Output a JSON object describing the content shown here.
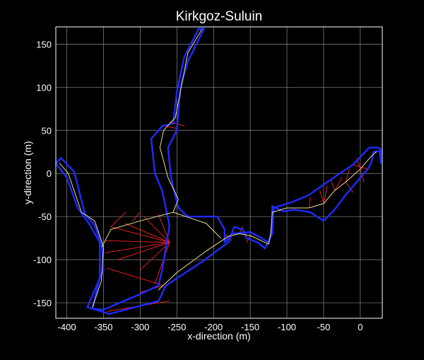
{
  "chart_data": {
    "type": "line",
    "title": "Kirkgoz-Suluin",
    "xlabel": "x-direction (m)",
    "ylabel": "y-direction (m)",
    "xlim": [
      -415,
      30
    ],
    "ylim": [
      -168,
      170
    ],
    "x_ticks": [
      -400,
      -350,
      -300,
      -250,
      -200,
      -150,
      -100,
      -50,
      0
    ],
    "y_ticks": [
      -150,
      -100,
      -50,
      0,
      50,
      100,
      150
    ],
    "grid": true,
    "colors": {
      "background": "#000000",
      "grid": "#8a8a8a",
      "axes": "#ffffff",
      "walls": "#1f2bff",
      "centerline": "#e6e090",
      "splays": "#ff2020"
    },
    "series": [
      {
        "role": "walls",
        "segments": [
          [
            [
              -415,
              12
            ],
            [
              -408,
              18
            ],
            [
              -390,
              2
            ],
            [
              -375,
              -48
            ],
            [
              -362,
              -60
            ],
            [
              -352,
              -85
            ],
            [
              -350,
              -112
            ],
            [
              -372,
              -155
            ],
            [
              -342,
              -163
            ],
            [
              -275,
              -148
            ],
            [
              -265,
              -130
            ],
            [
              -215,
              -102
            ],
            [
              -180,
              -80
            ],
            [
              -172,
              -62
            ],
            [
              -160,
              -65
            ],
            [
              -155,
              -75
            ],
            [
              -140,
              -80
            ],
            [
              -130,
              -87
            ],
            [
              -120,
              -70
            ],
            [
              -118,
              -40
            ],
            [
              -92,
              -33
            ],
            [
              -70,
              -25
            ],
            [
              -50,
              -13
            ],
            [
              -28,
              0
            ],
            [
              -10,
              10
            ],
            [
              12,
              30
            ],
            [
              25,
              30
            ],
            [
              28,
              28
            ],
            [
              28,
              12
            ]
          ],
          [
            [
              -415,
              12
            ],
            [
              -400,
              -5
            ],
            [
              -385,
              -40
            ],
            [
              -370,
              -58
            ],
            [
              -355,
              -80
            ],
            [
              -355,
              -100
            ],
            [
              -355,
              -120
            ],
            [
              -365,
              -157
            ],
            [
              -350,
              -158
            ],
            [
              -300,
              -140
            ],
            [
              -275,
              -130
            ],
            [
              -270,
              -112
            ],
            [
              -260,
              -60
            ],
            [
              -270,
              -20
            ],
            [
              -280,
              0
            ],
            [
              -285,
              40
            ],
            [
              -270,
              55
            ],
            [
              -255,
              58
            ],
            [
              -250,
              95
            ],
            [
              -240,
              135
            ],
            [
              -220,
              168
            ],
            [
              -213,
              168
            ],
            [
              -235,
              130
            ],
            [
              -245,
              100
            ],
            [
              -250,
              50
            ],
            [
              -262,
              30
            ],
            [
              -258,
              -5
            ],
            [
              -248,
              -40
            ],
            [
              -235,
              -50
            ],
            [
              -195,
              -50
            ],
            [
              -185,
              -65
            ],
            [
              -185,
              -80
            ],
            [
              -175,
              -70
            ],
            [
              -150,
              -68
            ],
            [
              -135,
              -75
            ],
            [
              -125,
              -80
            ],
            [
              -122,
              -70
            ],
            [
              -120,
              -55
            ],
            [
              -120,
              -38
            ],
            [
              -105,
              -44
            ],
            [
              -90,
              -42
            ],
            [
              -68,
              -45
            ],
            [
              -50,
              -55
            ],
            [
              -35,
              -42
            ],
            [
              -20,
              -25
            ],
            [
              -10,
              -15
            ],
            [
              10,
              5
            ],
            [
              15,
              12
            ],
            [
              18,
              25
            ],
            [
              26,
              26
            ],
            [
              28,
              15
            ]
          ]
        ]
      },
      {
        "role": "centerline",
        "segments": [
          [
            [
              -410,
              12
            ],
            [
              -398,
              0
            ],
            [
              -380,
              -45
            ],
            [
              -362,
              -55
            ],
            [
              -350,
              -85
            ],
            [
              -353,
              -125
            ],
            [
              -365,
              -155
            ]
          ],
          [
            [
              -352,
              -85
            ],
            [
              -340,
              -65
            ],
            [
              -300,
              -55
            ],
            [
              -255,
              -45
            ],
            [
              -248,
              -30
            ],
            [
              -262,
              -5
            ],
            [
              -273,
              30
            ],
            [
              -268,
              50
            ],
            [
              -252,
              65
            ],
            [
              -243,
              105
            ],
            [
              -235,
              140
            ],
            [
              -216,
              167
            ]
          ],
          [
            [
              -255,
              -45
            ],
            [
              -210,
              -58
            ],
            [
              -190,
              -75
            ]
          ],
          [
            [
              -275,
              -135
            ],
            [
              -250,
              -115
            ],
            [
              -210,
              -90
            ],
            [
              -180,
              -73
            ],
            [
              -165,
              -70
            ],
            [
              -150,
              -72
            ],
            [
              -135,
              -78
            ],
            [
              -125,
              -82
            ],
            [
              -122,
              -70
            ],
            [
              -120,
              -45
            ]
          ],
          [
            [
              -120,
              -45
            ],
            [
              -100,
              -40
            ],
            [
              -70,
              -40
            ],
            [
              -50,
              -35
            ],
            [
              -35,
              -20
            ],
            [
              -20,
              -10
            ],
            [
              0,
              5
            ],
            [
              15,
              20
            ],
            [
              22,
              25
            ]
          ]
        ]
      },
      {
        "role": "splays",
        "segments": [
          [
            [
              -260,
              -80
            ],
            [
              -340,
              -62
            ]
          ],
          [
            [
              -260,
              -80
            ],
            [
              -320,
              -58
            ]
          ],
          [
            [
              -260,
              -80
            ],
            [
              -295,
              -50
            ]
          ],
          [
            [
              -260,
              -80
            ],
            [
              -275,
              -48
            ]
          ],
          [
            [
              -260,
              -80
            ],
            [
              -348,
              -78
            ]
          ],
          [
            [
              -260,
              -80
            ],
            [
              -348,
              -92
            ]
          ],
          [
            [
              -260,
              -80
            ],
            [
              -330,
              -100
            ]
          ],
          [
            [
              -260,
              -80
            ],
            [
              -300,
              -112
            ]
          ],
          [
            [
              -260,
              -80
            ],
            [
              -280,
              -128
            ]
          ],
          [
            [
              -268,
              -130
            ],
            [
              -345,
              -110
            ]
          ],
          [
            [
              -268,
              -130
            ],
            [
              -300,
              -138
            ]
          ],
          [
            [
              -260,
              -148
            ],
            [
              -345,
              -160
            ]
          ],
          [
            [
              -340,
              -62
            ],
            [
              -320,
              -45
            ]
          ],
          [
            [
              -310,
              -55
            ],
            [
              -300,
              -45
            ]
          ],
          [
            [
              -265,
              55
            ],
            [
              -250,
              52
            ]
          ],
          [
            [
              -260,
              60
            ],
            [
              -240,
              55
            ]
          ],
          [
            [
              -185,
              -70
            ],
            [
              -175,
              -78
            ]
          ],
          [
            [
              -165,
              -70
            ],
            [
              -160,
              -62
            ]
          ],
          [
            [
              -150,
              -72
            ],
            [
              -155,
              -80
            ]
          ],
          [
            [
              -70,
              -40
            ],
            [
              -68,
              -28
            ]
          ],
          [
            [
              -50,
              -35
            ],
            [
              -55,
              -20
            ]
          ],
          [
            [
              -50,
              -35
            ],
            [
              -45,
              -15
            ]
          ],
          [
            [
              -35,
              -20
            ],
            [
              -40,
              -8
            ]
          ],
          [
            [
              -35,
              -20
            ],
            [
              -25,
              -5
            ]
          ],
          [
            [
              -20,
              -10
            ],
            [
              -15,
              5
            ]
          ],
          [
            [
              -20,
              -10
            ],
            [
              -10,
              -22
            ]
          ],
          [
            [
              0,
              5
            ],
            [
              -5,
              18
            ]
          ],
          [
            [
              0,
              5
            ],
            [
              5,
              -10
            ]
          ],
          [
            [
              10,
              5
            ],
            [
              -10,
              10
            ]
          ]
        ]
      }
    ]
  }
}
